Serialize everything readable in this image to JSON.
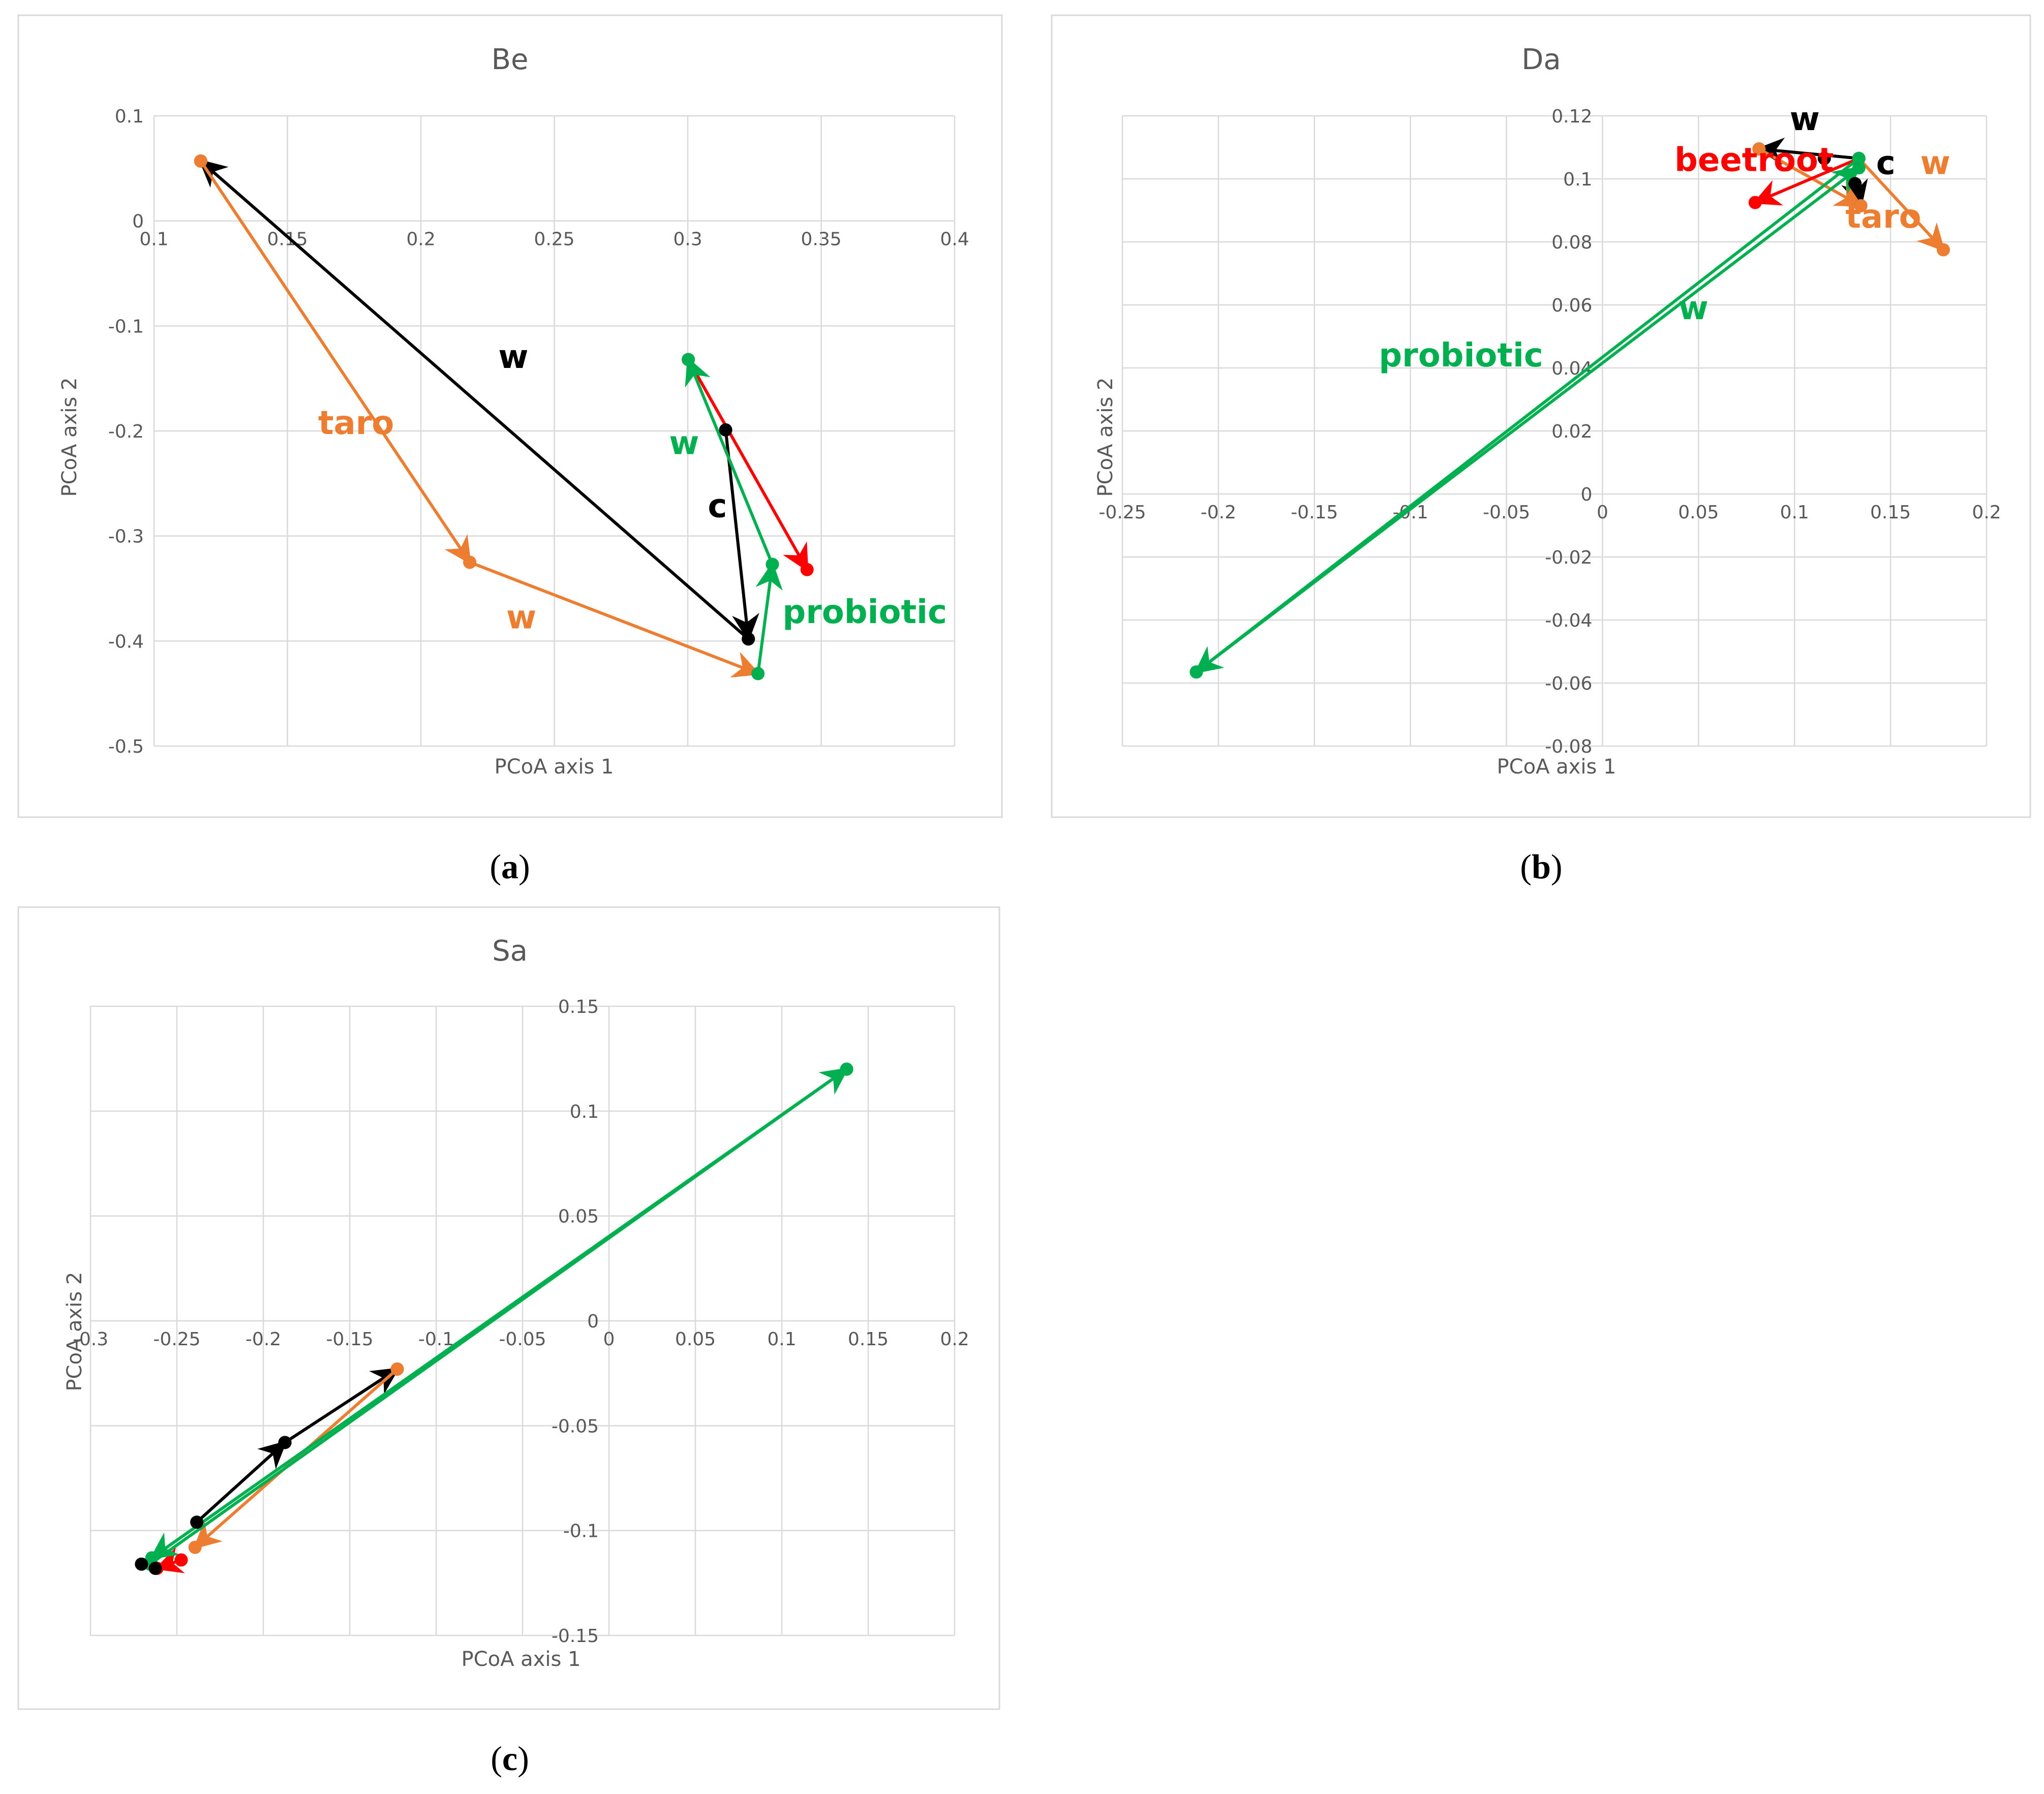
{
  "colors": {
    "black": "#000000",
    "orange": "#ED7D31",
    "green": "#00B050",
    "red": "#FF0000",
    "grid": "#D9D9D9",
    "text": "#595959"
  },
  "chart_data": [
    {
      "type": "scatter",
      "title": "Be",
      "caption": "a",
      "xlabel": "PCoA axis 1",
      "ylabel": "PCoA axis 2",
      "xlim": [
        0.1,
        0.4
      ],
      "ylim": [
        -0.5,
        0.1
      ],
      "xticks": [
        "0.1",
        "0.15",
        "0.2",
        "0.25",
        "0.3",
        "0.35",
        "0.4"
      ],
      "yticks": [
        "0.1",
        "0",
        "-0.1",
        "-0.2",
        "-0.3",
        "-0.4",
        "-0.5"
      ],
      "grid": true,
      "series": [
        {
          "color": "black",
          "points": [
            [
              0.3227,
              -0.398
            ],
            [
              0.1175,
              0.057
            ]
          ]
        },
        {
          "color": "black",
          "points": [
            [
              0.3142,
              -0.199
            ],
            [
              0.3227,
              -0.398
            ]
          ]
        },
        {
          "color": "orange",
          "points": [
            [
              0.1175,
              0.057
            ],
            [
              0.2183,
              -0.325
            ]
          ]
        },
        {
          "color": "orange",
          "points": [
            [
              0.2183,
              -0.325
            ],
            [
              0.3263,
              -0.431
            ]
          ]
        },
        {
          "color": "red",
          "points": [
            [
              0.3002,
              -0.132
            ],
            [
              0.3447,
              -0.332
            ]
          ]
        },
        {
          "color": "green",
          "points": [
            [
              0.3263,
              -0.431
            ],
            [
              0.3317,
              -0.327
            ]
          ]
        },
        {
          "color": "green",
          "points": [
            [
              0.3317,
              -0.327
            ],
            [
              0.3002,
              -0.132
            ]
          ]
        }
      ],
      "annotations": [
        {
          "text": "w",
          "color": "black",
          "x": 0.229,
          "y": -0.14
        },
        {
          "text": "c",
          "color": "black",
          "x": 0.3075,
          "y": -0.282
        },
        {
          "text": "taro",
          "color": "orange",
          "x": 0.1615,
          "y": -0.203
        },
        {
          "text": "w",
          "color": "orange",
          "x": 0.232,
          "y": -0.388
        },
        {
          "text": "w",
          "color": "green",
          "x": 0.293,
          "y": -0.222
        },
        {
          "text": "probiotic",
          "color": "green",
          "x": 0.3355,
          "y": -0.383
        }
      ]
    },
    {
      "type": "scatter",
      "title": "Da",
      "caption": "b",
      "xlabel": "PCoA axis 1",
      "ylabel": "PCoA axis 2",
      "xlim": [
        -0.25,
        0.2
      ],
      "ylim": [
        -0.08,
        0.12
      ],
      "xticks": [
        "-0.25",
        "-0.2",
        "-0.15",
        "-0.1",
        "-0.05",
        "0",
        "0.05",
        "0.1",
        "0.15",
        "0.2"
      ],
      "yticks": [
        "0.12",
        "0.1",
        "0.08",
        "0.06",
        "0.04",
        "0.02",
        "0",
        "-0.02",
        "-0.04",
        "-0.06",
        "-0.08"
      ],
      "grid": true,
      "series": [
        {
          "color": "black",
          "points": [
            [
              0.1335,
              0.1065
            ],
            [
              0.0815,
              0.1095
            ]
          ]
        },
        {
          "color": "black",
          "points": [
            [
              0.1315,
              0.0985
            ],
            [
              0.1345,
              0.0915
            ]
          ]
        },
        {
          "color": "orange",
          "points": [
            [
              0.0815,
              0.1095
            ],
            [
              0.1345,
              0.0915
            ]
          ]
        },
        {
          "color": "orange",
          "points": [
            [
              0.1335,
              0.1065
            ],
            [
              0.1775,
              0.0775
            ]
          ]
        },
        {
          "color": "red",
          "points": [
            [
              0.1335,
              0.1065
            ],
            [
              0.0795,
              0.0925
            ]
          ]
        },
        {
          "color": "green",
          "points": [
            [
              0.1335,
              0.1065
            ],
            [
              -0.2115,
              -0.0565
            ]
          ]
        },
        {
          "color": "green",
          "points": [
            [
              -0.2115,
              -0.0565
            ],
            [
              0.1335,
              0.1035
            ]
          ]
        }
      ],
      "points": [
        {
          "color": "black",
          "x": 0.1155,
          "y": 0.1065
        }
      ],
      "annotations": [
        {
          "text": "w",
          "color": "black",
          "x": 0.0975,
          "y": 0.1155
        },
        {
          "text": "c",
          "color": "black",
          "x": 0.1425,
          "y": 0.1015
        },
        {
          "text": "w",
          "color": "orange",
          "x": 0.1655,
          "y": 0.1015
        },
        {
          "text": "beetroot",
          "color": "red",
          "x": 0.0375,
          "y": 0.1025
        },
        {
          "text": "taro",
          "color": "orange",
          "x": 0.1265,
          "y": 0.0845
        },
        {
          "text": "w",
          "color": "green",
          "x": 0.0395,
          "y": 0.0555
        },
        {
          "text": "probiotic",
          "color": "green",
          "x": -0.1165,
          "y": 0.0405
        }
      ]
    },
    {
      "type": "scatter",
      "title": "Sa",
      "caption": "c",
      "xlabel": "PCoA axis 1",
      "ylabel": "PCoA axis 2",
      "xlim": [
        -0.3,
        0.2
      ],
      "ylim": [
        -0.15,
        0.15
      ],
      "xticks": [
        "-0.3",
        "-0.25",
        "-0.2",
        "-0.15",
        "-0.1",
        "-0.05",
        "0",
        "0.05",
        "0.1",
        "0.15",
        "0.2"
      ],
      "yticks": [
        "0.15",
        "0.1",
        "0.05",
        "0",
        "-0.05",
        "-0.1",
        "-0.15"
      ],
      "grid": true,
      "series": [
        {
          "color": "black",
          "points": [
            [
              -0.2385,
              -0.096
            ],
            [
              -0.1875,
              -0.058
            ]
          ]
        },
        {
          "color": "black",
          "points": [
            [
              -0.1875,
              -0.058
            ],
            [
              -0.1225,
              -0.023
            ]
          ]
        },
        {
          "color": "orange",
          "points": [
            [
              -0.1225,
              -0.023
            ],
            [
              -0.2395,
              -0.108
            ]
          ]
        },
        {
          "color": "red",
          "points": [
            [
              -0.2475,
              -0.114
            ],
            [
              -0.2615,
              -0.118
            ]
          ]
        },
        {
          "color": "green",
          "points": [
            [
              -0.2655,
              -0.116
            ],
            [
              0.1375,
              0.12
            ]
          ]
        },
        {
          "color": "green",
          "points": [
            [
              0.1375,
              0.12
            ],
            [
              -0.2645,
              -0.113
            ]
          ]
        }
      ],
      "points": [
        {
          "color": "black",
          "x": -0.2705,
          "y": -0.116
        },
        {
          "color": "black",
          "x": -0.2625,
          "y": -0.118
        }
      ],
      "annotations": []
    }
  ]
}
